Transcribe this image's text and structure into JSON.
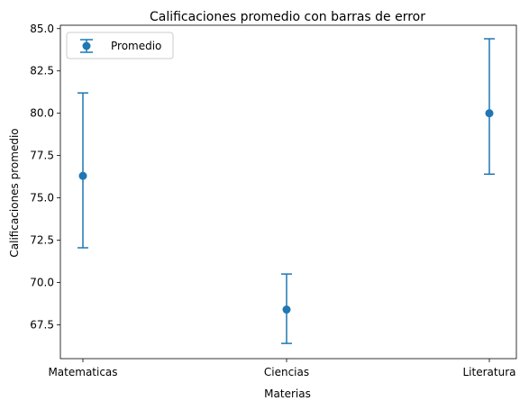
{
  "chart_data": {
    "type": "scatter",
    "title": "Calificaciones promedio con barras de error",
    "xlabel": "Materias",
    "ylabel": "Calificaciones promedio",
    "categories": [
      "Matematicas",
      "Ciencias",
      "Literatura"
    ],
    "series": [
      {
        "name": "Promedio",
        "values": [
          76.3,
          68.4,
          80.0
        ],
        "errors_lower": [
          4.25,
          2.0,
          3.6
        ],
        "errors_upper": [
          4.9,
          2.1,
          4.4
        ]
      }
    ],
    "ylim": [
      65.5,
      85.2
    ],
    "yticks": [
      67.5,
      70.0,
      72.5,
      75.0,
      77.5,
      80.0,
      82.5,
      85.0
    ],
    "ytick_labels": [
      "67.5",
      "70.0",
      "72.5",
      "75.0",
      "77.5",
      "80.0",
      "82.5",
      "85.0"
    ],
    "grid": false,
    "legend_position": "top-left",
    "color": "#1f77b4"
  }
}
